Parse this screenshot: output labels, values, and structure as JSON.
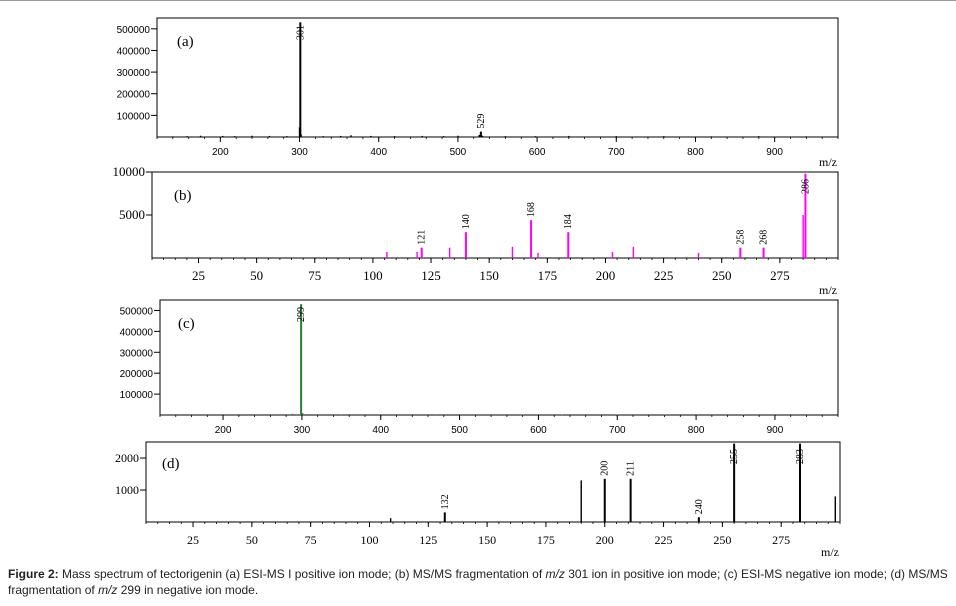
{
  "chart_data": [
    {
      "type": "bar",
      "panel_label": "(a)",
      "color": "#000000",
      "xlim": [
        120,
        980
      ],
      "ylim": [
        0,
        550000
      ],
      "xticks": [
        "200",
        "300",
        "400",
        "500",
        "600",
        "700",
        "800",
        "900"
      ],
      "yticks": [
        "100000",
        "200000",
        "300000",
        "400000",
        "500000"
      ],
      "xlabel": "m/z",
      "peaks": [
        {
          "x": 301,
          "y": 530000,
          "label": "301"
        },
        {
          "x": 529,
          "y": 25000,
          "label": "529"
        }
      ],
      "minor_peaks": [
        [
          140,
          3000
        ],
        [
          158,
          4000
        ],
        [
          175,
          6000
        ],
        [
          203,
          5000
        ],
        [
          218,
          4000
        ],
        [
          240,
          6000
        ],
        [
          262,
          5000
        ],
        [
          284,
          4000
        ],
        [
          300,
          45000
        ],
        [
          302,
          12000
        ],
        [
          330,
          4000
        ],
        [
          352,
          5000
        ],
        [
          365,
          8000
        ],
        [
          390,
          5000
        ],
        [
          420,
          4000
        ],
        [
          455,
          5000
        ],
        [
          482,
          4000
        ],
        [
          500,
          6000
        ],
        [
          527,
          10000
        ],
        [
          531,
          6000
        ],
        [
          560,
          4000
        ],
        [
          598,
          4000
        ],
        [
          640,
          5000
        ],
        [
          700,
          4000
        ],
        [
          760,
          4000
        ],
        [
          820,
          3000
        ],
        [
          880,
          4000
        ],
        [
          940,
          3000
        ]
      ]
    },
    {
      "type": "bar",
      "panel_label": "(b)",
      "color": "#ff00ff",
      "xlim": [
        5,
        300
      ],
      "ylim": [
        0,
        10000
      ],
      "xticks": [
        "25",
        "50",
        "75",
        "100",
        "125",
        "150",
        "175",
        "200",
        "225",
        "250",
        "275"
      ],
      "yticks": [
        "5000",
        "10000"
      ],
      "xlabel": "m/z",
      "peaks": [
        {
          "x": 121,
          "y": 1200,
          "label": "121"
        },
        {
          "x": 140,
          "y": 3000,
          "label": "140"
        },
        {
          "x": 168,
          "y": 4400,
          "label": "168"
        },
        {
          "x": 184,
          "y": 3000,
          "label": "184"
        },
        {
          "x": 258,
          "y": 1200,
          "label": "258"
        },
        {
          "x": 268,
          "y": 1200,
          "label": "268"
        },
        {
          "x": 286,
          "y": 9800,
          "label": "286"
        }
      ],
      "minor_peaks": [
        [
          106,
          700
        ],
        [
          119,
          700
        ],
        [
          133,
          1200
        ],
        [
          160,
          1300
        ],
        [
          171,
          600
        ],
        [
          203,
          700
        ],
        [
          212,
          1300
        ],
        [
          240,
          600
        ],
        [
          285,
          5000
        ]
      ]
    },
    {
      "type": "bar",
      "panel_label": "(c)",
      "color": "#2e7d32",
      "xlim": [
        120,
        980
      ],
      "ylim": [
        0,
        550000
      ],
      "xticks": [
        "200",
        "300",
        "400",
        "500",
        "600",
        "700",
        "800",
        "900"
      ],
      "yticks": [
        "100000",
        "200000",
        "300000",
        "400000",
        "500000"
      ],
      "xlabel": "",
      "peaks": [
        {
          "x": 299,
          "y": 530000,
          "label": "299"
        }
      ],
      "minor_peaks": [
        [
          288,
          6000
        ],
        [
          301,
          9000
        ],
        [
          305,
          4000
        ],
        [
          350,
          2000
        ],
        [
          470,
          3000
        ],
        [
          580,
          2000
        ],
        [
          630,
          2000
        ],
        [
          700,
          2000
        ],
        [
          760,
          2000
        ],
        [
          860,
          2000
        ]
      ]
    },
    {
      "type": "bar",
      "panel_label": "(d)",
      "color": "#000000",
      "xlim": [
        5,
        300
      ],
      "ylim": [
        0,
        2500
      ],
      "xticks": [
        "25",
        "50",
        "75",
        "100",
        "125",
        "150",
        "175",
        "200",
        "225",
        "250",
        "275"
      ],
      "yticks": [
        "1000",
        "2000"
      ],
      "xlabel": "m/z",
      "peaks": [
        {
          "x": 132,
          "y": 300,
          "label": "132"
        },
        {
          "x": 200,
          "y": 1350,
          "label": "200"
        },
        {
          "x": 211,
          "y": 1350,
          "label": "211"
        },
        {
          "x": 240,
          "y": 150,
          "label": "240"
        },
        {
          "x": 255,
          "y": 2450,
          "label": "255"
        },
        {
          "x": 283,
          "y": 2450,
          "label": "283"
        }
      ],
      "minor_peaks": [
        [
          109,
          120
        ],
        [
          190,
          1300
        ],
        [
          298,
          800
        ]
      ]
    }
  ],
  "caption": {
    "bold": "Figure 2:",
    "parts": [
      " Mass spectrum of tectorigenin (a) ESI-MS I positive ion mode; (b) MS/MS fragmentation of ",
      "m/z",
      " 301 ion in positive ion mode; (c) ESI-MS negative ion mode; (d) MS/MS fragmentation of ",
      "m/z",
      " 299 in negative ion mode."
    ]
  }
}
